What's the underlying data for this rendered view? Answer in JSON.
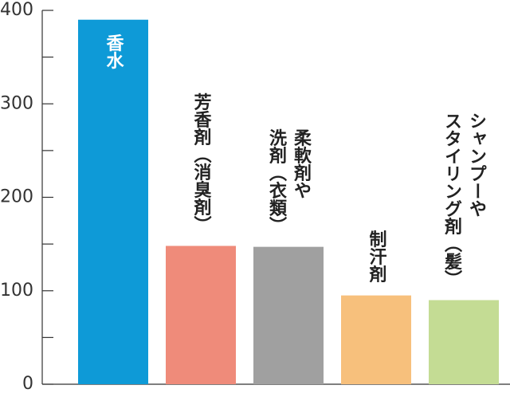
{
  "chart_data": {
    "type": "bar",
    "categories": [
      [
        "香水"
      ],
      [
        "芳香剤（消臭剤）"
      ],
      [
        "柔軟剤や",
        "洗剤（衣類）"
      ],
      [
        "制汗剤"
      ],
      [
        "シャンプーや",
        "スタイリング剤（髪）"
      ]
    ],
    "values": [
      390,
      148,
      147,
      95,
      90
    ],
    "colors": [
      "#0e9ad7",
      "#ef8b7a",
      "#a0a0a0",
      "#f7c07c",
      "#c4dc94"
    ],
    "ylim": [
      0,
      400
    ],
    "yticks": [
      0,
      100,
      200,
      300,
      400
    ],
    "minor_yticks": [
      50,
      150,
      250,
      350
    ]
  }
}
